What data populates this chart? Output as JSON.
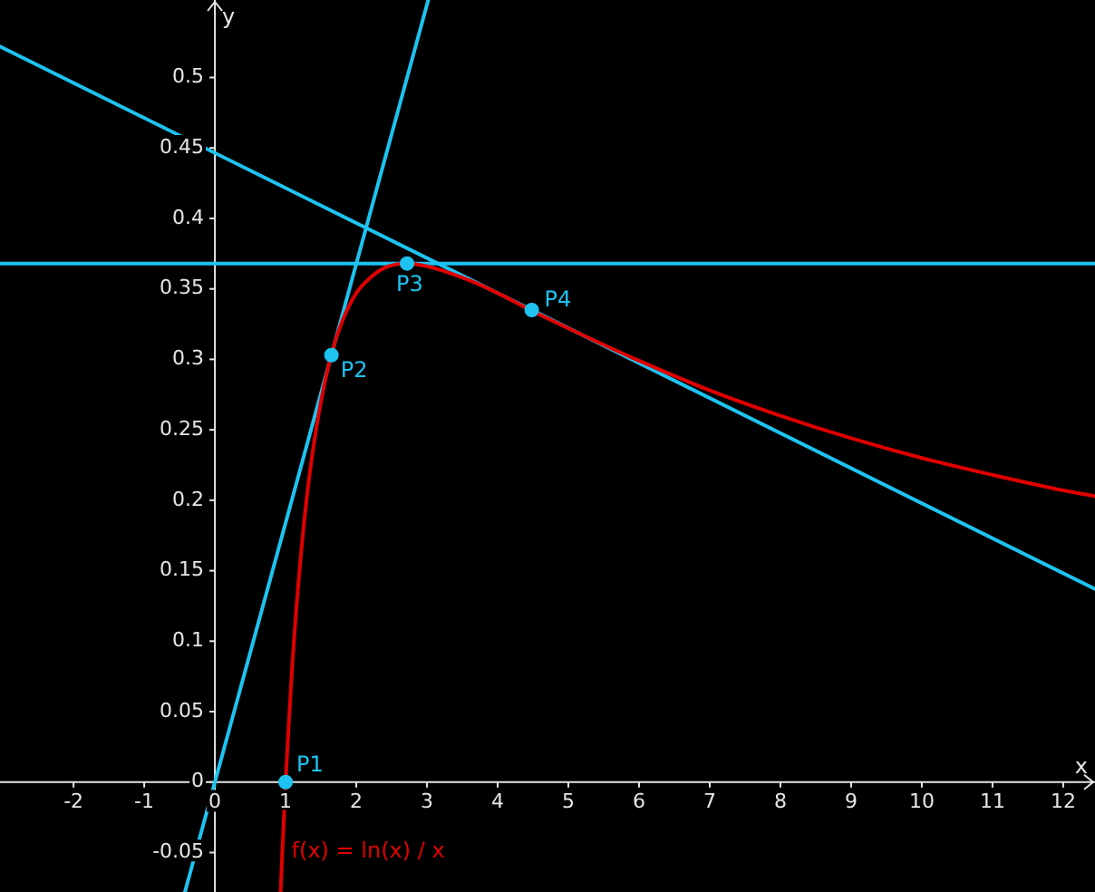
{
  "chart_data": {
    "type": "line",
    "xlabel": "x",
    "ylabel": "y",
    "xlim": [
      -3.04,
      12.45
    ],
    "ylim": [
      -0.078,
      0.555
    ],
    "xticks": [
      -2,
      -1,
      0,
      1,
      2,
      3,
      4,
      5,
      6,
      7,
      8,
      9,
      10,
      11,
      12
    ],
    "yticks": [
      -0.05,
      0,
      0.05,
      0.1,
      0.15,
      0.2,
      0.25,
      0.3,
      0.35,
      0.4,
      0.45,
      0.5
    ],
    "grid": false,
    "legend": false,
    "series": [
      {
        "type": "line",
        "name": "f(x) = ln(x) / x",
        "color": "#e00000",
        "x": [
          0.93,
          0.95,
          1,
          1.05,
          1.1,
          1.15,
          1.2,
          1.3,
          1.4,
          1.5,
          1.65,
          1.8,
          2,
          2.2,
          2.4,
          2.718,
          3,
          3.5,
          4,
          4.5,
          5,
          6,
          7,
          8,
          9,
          10,
          11,
          12,
          12.45
        ],
        "values": [
          -0.078,
          -0.054,
          0,
          0.046,
          0.087,
          0.122,
          0.152,
          0.202,
          0.24,
          0.27,
          0.304,
          0.327,
          0.347,
          0.358,
          0.365,
          0.368,
          0.366,
          0.358,
          0.347,
          0.334,
          0.322,
          0.299,
          0.278,
          0.26,
          0.244,
          0.23,
          0.218,
          0.207,
          0.203
        ]
      },
      {
        "type": "line",
        "color": "#1ec3f0",
        "x": [
          -0.424,
          3.018
        ],
        "values": [
          -0.078,
          0.555
        ]
      },
      {
        "type": "line",
        "color": "#1ec3f0",
        "x": [
          -3.04,
          12.45
        ],
        "values": [
          0.522,
          0.137
        ]
      },
      {
        "type": "scatter",
        "marker": "circle",
        "color": "#1ec3f0",
        "x": [
          1,
          1.649,
          2.718,
          4.482
        ],
        "values": [
          0,
          0.303,
          0.368,
          0.335
        ]
      }
    ],
    "ref_lines": [
      {
        "axis": "y",
        "value": 0.368,
        "color": "#1ec3f0"
      }
    ],
    "annotations": [
      {
        "text": "P1",
        "x": 1,
        "y": 0
      },
      {
        "text": "P2",
        "x": 1.649,
        "y": 0.303
      },
      {
        "text": "P3",
        "x": 2.718,
        "y": 0.368
      },
      {
        "text": "P4",
        "x": 4.482,
        "y": 0.335
      }
    ]
  }
}
